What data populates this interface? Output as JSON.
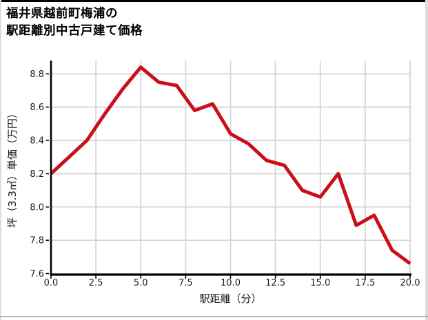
{
  "header": {
    "title_line1": "福井県越前町梅浦の",
    "title_line2": "駅距離別中古戸建て価格"
  },
  "chart_data": {
    "type": "line",
    "title": "福井県越前町梅浦の 駅距離別中古戸建て価格",
    "xlabel": "駅距離（分）",
    "ylabel": "坪（3.3㎡）単価（万円）",
    "x": [
      0,
      1,
      2,
      3,
      4,
      5,
      6,
      7,
      8,
      9,
      10,
      11,
      12,
      13,
      14,
      15,
      16,
      17,
      18,
      19,
      20
    ],
    "y": [
      8.2,
      8.3,
      8.4,
      8.56,
      8.71,
      8.84,
      8.75,
      8.73,
      8.58,
      8.62,
      8.44,
      8.38,
      8.28,
      8.25,
      8.1,
      8.06,
      8.2,
      7.89,
      7.95,
      7.74,
      7.66
    ],
    "xlim": [
      0,
      20
    ],
    "ylim": [
      7.6,
      8.88
    ],
    "xtick_values": [
      0.0,
      2.5,
      5.0,
      7.5,
      10.0,
      12.5,
      15.0,
      17.5,
      20.0
    ],
    "xtick_labels": [
      "0.0",
      "2.5",
      "5.0",
      "7.5",
      "10.0",
      "12.5",
      "15.0",
      "17.5",
      "20.0"
    ],
    "ytick_values": [
      7.6,
      7.8,
      8.0,
      8.2,
      8.4,
      8.6,
      8.8
    ],
    "ytick_labels": [
      "7.6",
      "7.8",
      "8.0",
      "8.2",
      "8.4",
      "8.6",
      "8.8"
    ],
    "grid": true,
    "legend": false,
    "line_color": "#c9101a",
    "grid_color": "#d6d6d6",
    "axis_color": "#000000"
  }
}
